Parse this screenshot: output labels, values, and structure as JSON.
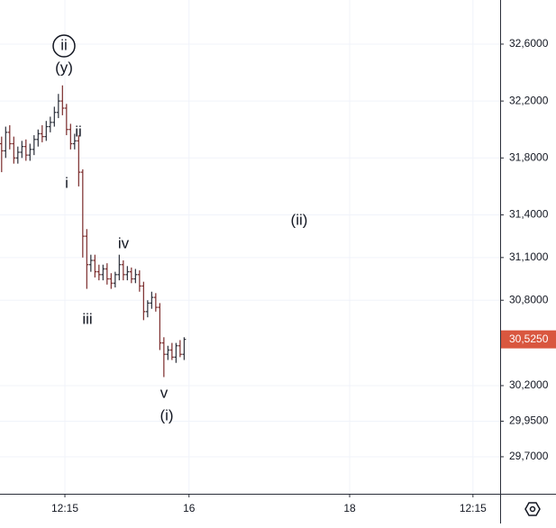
{
  "chart_data": {
    "type": "ohlc",
    "x": [
      0,
      1,
      2,
      3,
      4,
      5,
      6,
      7,
      8,
      9,
      10,
      11,
      12,
      13,
      14,
      15,
      16,
      17,
      18,
      19,
      20,
      21,
      22,
      23,
      24,
      25,
      26,
      27,
      28,
      29,
      30,
      31,
      32,
      33,
      34,
      35,
      36,
      37,
      38,
      39,
      40,
      41,
      42,
      43,
      44,
      45
    ],
    "open": [
      31.9,
      31.85,
      31.98,
      31.9,
      31.8,
      31.84,
      31.88,
      31.82,
      31.86,
      31.93,
      31.97,
      31.95,
      32.02,
      32.05,
      32.12,
      32.2,
      32.15,
      32.0,
      31.9,
      31.92,
      31.7,
      31.25,
      31.05,
      31.08,
      31.0,
      30.98,
      31.02,
      30.95,
      30.92,
      30.98,
      31.05,
      30.98,
      31.0,
      30.95,
      30.98,
      30.9,
      30.72,
      30.78,
      30.82,
      30.75,
      30.5,
      30.42,
      30.45,
      30.4,
      30.48,
      30.42
    ],
    "high": [
      31.95,
      32.02,
      32.03,
      31.95,
      31.88,
      31.92,
      31.93,
      31.9,
      31.96,
      32.0,
      32.03,
      32.06,
      32.09,
      32.16,
      32.25,
      32.31,
      32.18,
      32.04,
      31.97,
      31.96,
      31.72,
      31.3,
      31.12,
      31.12,
      31.05,
      31.05,
      31.06,
      30.99,
      31.0,
      31.12,
      31.08,
      31.04,
      31.03,
      31.02,
      31.01,
      30.93,
      30.8,
      30.86,
      30.85,
      30.78,
      30.54,
      30.48,
      30.5,
      30.5,
      30.52,
      30.54
    ],
    "low": [
      31.7,
      31.8,
      31.86,
      31.76,
      31.76,
      31.8,
      31.78,
      31.78,
      31.82,
      31.88,
      31.91,
      31.92,
      31.98,
      32.02,
      32.08,
      32.1,
      31.96,
      31.86,
      31.86,
      31.6,
      31.1,
      30.88,
      31.0,
      30.96,
      30.94,
      30.94,
      30.91,
      30.88,
      30.89,
      30.94,
      30.94,
      30.94,
      30.92,
      30.92,
      30.86,
      30.66,
      30.68,
      30.74,
      30.72,
      30.45,
      30.26,
      30.38,
      30.38,
      30.36,
      30.4,
      30.38
    ],
    "close": [
      31.85,
      31.98,
      31.9,
      31.8,
      31.84,
      31.88,
      31.82,
      31.86,
      31.93,
      31.97,
      31.95,
      32.02,
      32.05,
      32.12,
      32.2,
      32.15,
      32.0,
      31.9,
      31.92,
      31.7,
      31.25,
      31.05,
      31.08,
      31.0,
      30.98,
      31.02,
      30.95,
      30.92,
      30.98,
      31.05,
      30.98,
      31.0,
      30.95,
      30.98,
      30.9,
      30.72,
      30.78,
      30.82,
      30.75,
      30.5,
      30.42,
      30.45,
      30.4,
      30.48,
      30.42,
      30.525
    ],
    "up_color": "#2a2e39",
    "down_color": "#7a2a2a",
    "xlim": [
      -0.4,
      122.9
    ],
    "xticks": [
      {
        "value": 15.6,
        "label": "12:15"
      },
      {
        "value": 46.2,
        "label": "16"
      },
      {
        "value": 85.8,
        "label": "18"
      },
      {
        "value": 116.2,
        "label": "12:15"
      }
    ],
    "ylim": [
      29.44,
      32.91
    ],
    "yticks": [
      {
        "value": 32.6,
        "label": "32,6000"
      },
      {
        "value": 32.2,
        "label": "32,2000"
      },
      {
        "value": 31.8,
        "label": "31,8000"
      },
      {
        "value": 31.4,
        "label": "31,4000"
      },
      {
        "value": 31.1,
        "label": "31,1000"
      },
      {
        "value": 30.8,
        "label": "30,8000"
      },
      {
        "value": 30.2,
        "label": "30,2000"
      },
      {
        "value": 29.95,
        "label": "29,9500"
      },
      {
        "value": 29.7,
        "label": "29,7000"
      }
    ],
    "last_price": {
      "value": 30.525,
      "label": "30,5250"
    },
    "last_price_color": "#d9573f",
    "grid": true,
    "annotations": [
      "ii",
      "(y)",
      "ii",
      "i",
      "iv",
      "iii",
      "v",
      "(i)",
      "(ii)"
    ]
  }
}
